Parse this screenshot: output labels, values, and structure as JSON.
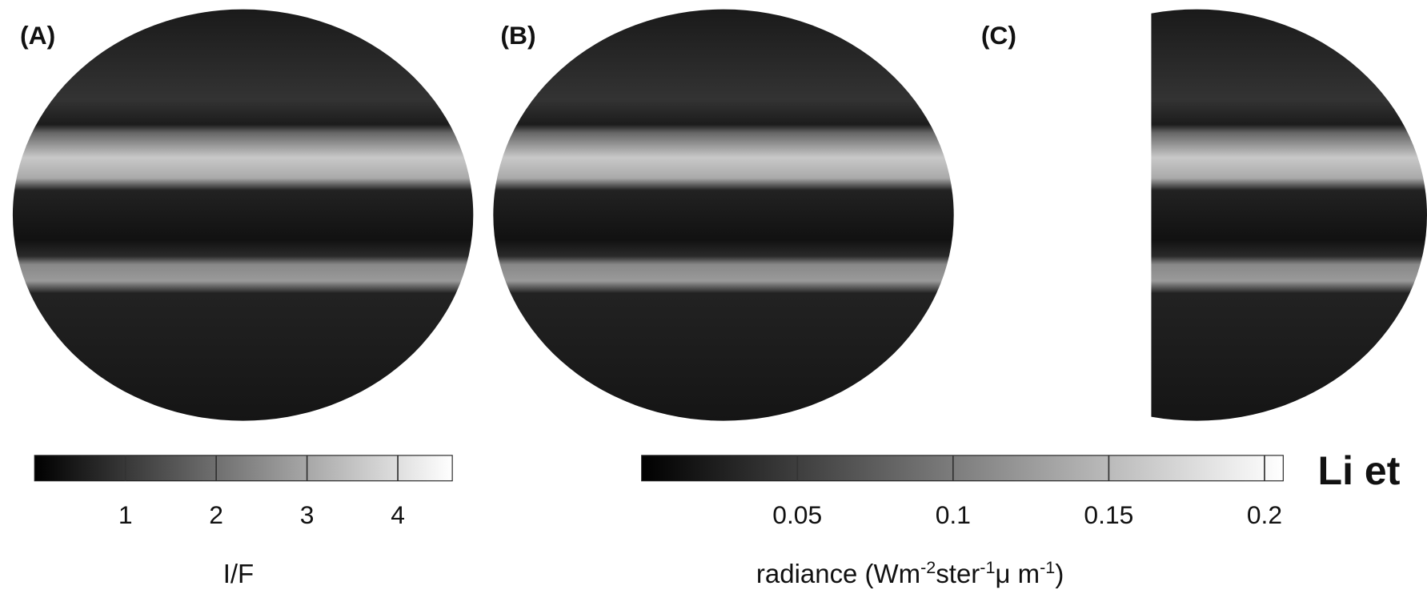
{
  "panels": [
    {
      "label": "(A)"
    },
    {
      "label": "(B)"
    },
    {
      "label": "(C)"
    }
  ],
  "colorbars": [
    {
      "lim": [
        0,
        4.6
      ],
      "ticks": [
        1,
        2,
        3,
        4
      ],
      "label_parts": [
        {
          "text": "I/F"
        }
      ]
    },
    {
      "lim": [
        0,
        0.206
      ],
      "ticks": [
        0.05,
        0.1,
        0.15,
        0.2
      ],
      "label_parts": [
        {
          "text": "radiance (Wm"
        },
        {
          "sup": "-2"
        },
        {
          "text": "ster"
        },
        {
          "sup": "-1"
        },
        {
          "text": "μ m"
        },
        {
          "sup": "-1"
        },
        {
          "text": ")"
        }
      ]
    }
  ],
  "credit": "Li et"
}
